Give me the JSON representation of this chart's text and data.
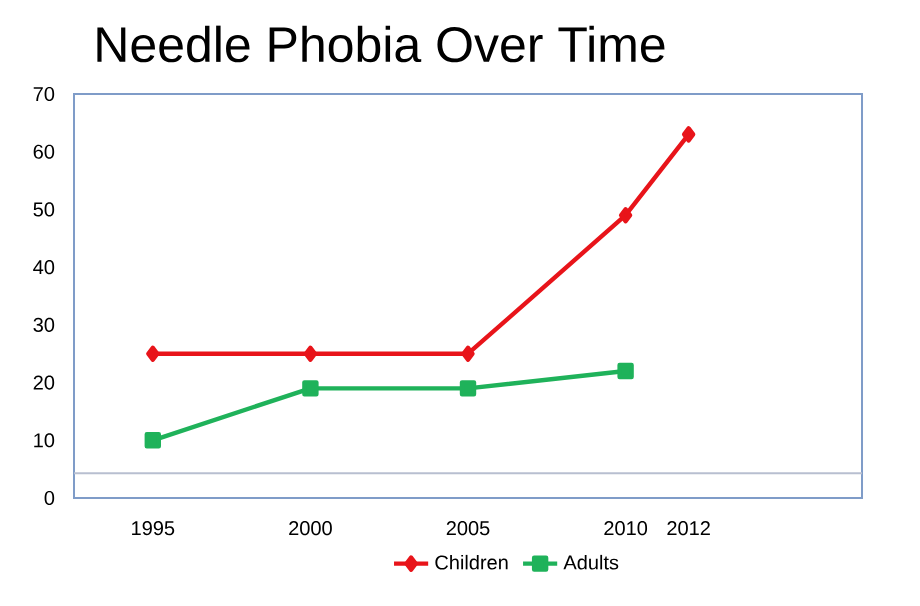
{
  "chart_data": {
    "type": "line",
    "title": "Needle Phobia Over Time",
    "x": [
      1995,
      2000,
      2005,
      2010,
      2012
    ],
    "xlim": [
      1992.5,
      2017.5
    ],
    "xticks": [
      1995,
      2000,
      2005,
      2010,
      2012
    ],
    "ylim": [
      0,
      70
    ],
    "yticks": [
      0,
      10,
      20,
      30,
      40,
      50,
      60,
      70
    ],
    "series": [
      {
        "name": "Children",
        "color": "#e8141a",
        "marker": "diamond",
        "values": [
          25,
          25,
          25,
          49,
          63
        ]
      },
      {
        "name": "Adults",
        "color": "#1fb25a",
        "marker": "square",
        "x": [
          1995,
          2000,
          2005,
          2010
        ],
        "values": [
          10,
          19,
          19,
          22
        ]
      }
    ],
    "ref_lines": [
      {
        "axis": "y",
        "value": 4.3,
        "color": "#b8bfd0"
      }
    ],
    "grid": false,
    "legend": "bottom",
    "line_style": "solid"
  }
}
